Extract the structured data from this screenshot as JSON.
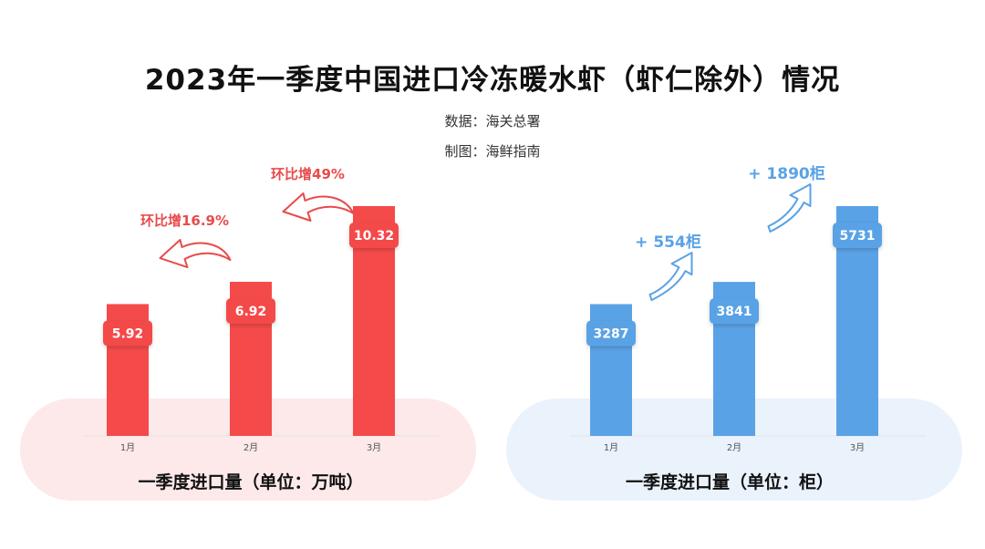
{
  "title": "2023年一季度中国进口冷冻暖水虾（虾仁除外）情况",
  "source": "数据：海关总署",
  "maker": "制图：海鲜指南",
  "colors": {
    "left_bar": "#f44a4a",
    "right_bar": "#5aa2e6",
    "left_pill": "#fde9e9",
    "right_pill": "#eaf3fc",
    "left_annot": "#e84b4b",
    "right_annot": "#5aa2e6"
  },
  "chart_data": [
    {
      "type": "bar",
      "caption": "一季度进口量（单位：万吨）",
      "categories": [
        "1月",
        "2月",
        "3月"
      ],
      "values": [
        5.92,
        6.92,
        10.32
      ],
      "value_labels": [
        "5.92",
        "6.92",
        "10.32"
      ],
      "annotations": [
        "环比增16.9%",
        "环比增49%"
      ]
    },
    {
      "type": "bar",
      "caption": "一季度进口量（单位：柜）",
      "categories": [
        "1月",
        "2月",
        "3月"
      ],
      "values": [
        3287,
        3841,
        5731
      ],
      "value_labels": [
        "3287",
        "3841",
        "5731"
      ],
      "annotations": [
        "+ 554柜",
        "+ 1890柜"
      ]
    }
  ]
}
